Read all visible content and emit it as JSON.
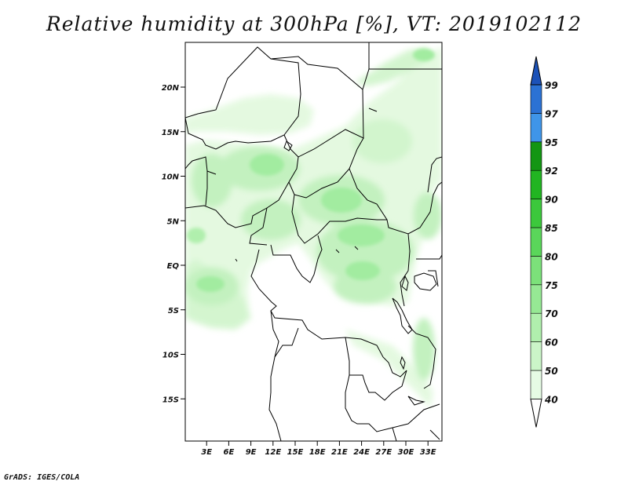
{
  "title": "Relative humidity at 300hPa [%], VT: 2019102112",
  "footer": "GrADS: IGES/COLA",
  "lat_ticks": [
    {
      "label": "20N",
      "lat": 20
    },
    {
      "label": "15N",
      "lat": 15
    },
    {
      "label": "10N",
      "lat": 10
    },
    {
      "label": "5N",
      "lat": 5
    },
    {
      "label": "EQ",
      "lat": 0
    },
    {
      "label": "5S",
      "lat": -5
    },
    {
      "label": "10S",
      "lat": -10
    },
    {
      "label": "15S",
      "lat": -15
    }
  ],
  "lon_ticks": [
    {
      "label": "3E",
      "lon": 3
    },
    {
      "label": "6E",
      "lon": 6
    },
    {
      "label": "9E",
      "lon": 9
    },
    {
      "label": "12E",
      "lon": 12
    },
    {
      "label": "15E",
      "lon": 15
    },
    {
      "label": "18E",
      "lon": 18
    },
    {
      "label": "21E",
      "lon": 21
    },
    {
      "label": "24E",
      "lon": 24
    },
    {
      "label": "27E",
      "lon": 27
    },
    {
      "label": "30E",
      "lon": 30
    },
    {
      "label": "33E",
      "lon": 33
    }
  ],
  "colorbar": {
    "labels": [
      "40",
      "50",
      "60",
      "70",
      "75",
      "80",
      "85",
      "90",
      "92",
      "95",
      "97",
      "99"
    ],
    "colors": [
      "#ffffff",
      "#e6fbe4",
      "#cbf5c8",
      "#b0efad",
      "#96e894",
      "#7ce17a",
      "#5ad65a",
      "#3cc83c",
      "#22b522",
      "#139613",
      "#3f95e8",
      "#2b72d4",
      "#1c52b8"
    ]
  },
  "chart_data": {
    "type": "heatmap",
    "title": "Relative humidity at 300hPa [%], VT: 2019102112",
    "variable": "Relative humidity",
    "level": "300hPa",
    "units": "%",
    "valid_time": "2019102112",
    "xlim": [
      0,
      35
    ],
    "ylim": [
      -20,
      25
    ],
    "contour_levels": [
      40,
      50,
      60,
      70,
      75,
      80,
      85,
      90,
      92,
      95,
      97,
      99
    ],
    "moist_regions": [
      {
        "lon": 9,
        "lat": 11,
        "rh": 75
      },
      {
        "lon": 12,
        "lat": 7,
        "rh": 70
      },
      {
        "lon": 22,
        "lat": 7,
        "rh": 75
      },
      {
        "lon": 24,
        "lat": 2,
        "rh": 75
      },
      {
        "lon": 22,
        "lat": -1,
        "rh": 75
      },
      {
        "lon": 3,
        "lat": -2,
        "rh": 75
      },
      {
        "lon": 29,
        "lat": 15,
        "rh": 60
      },
      {
        "lon": 30,
        "lat": 23,
        "rh": 70
      },
      {
        "lon": 8,
        "lat": 17,
        "rh": 60
      },
      {
        "lon": 31,
        "lat": 12,
        "rh": 60
      }
    ]
  }
}
